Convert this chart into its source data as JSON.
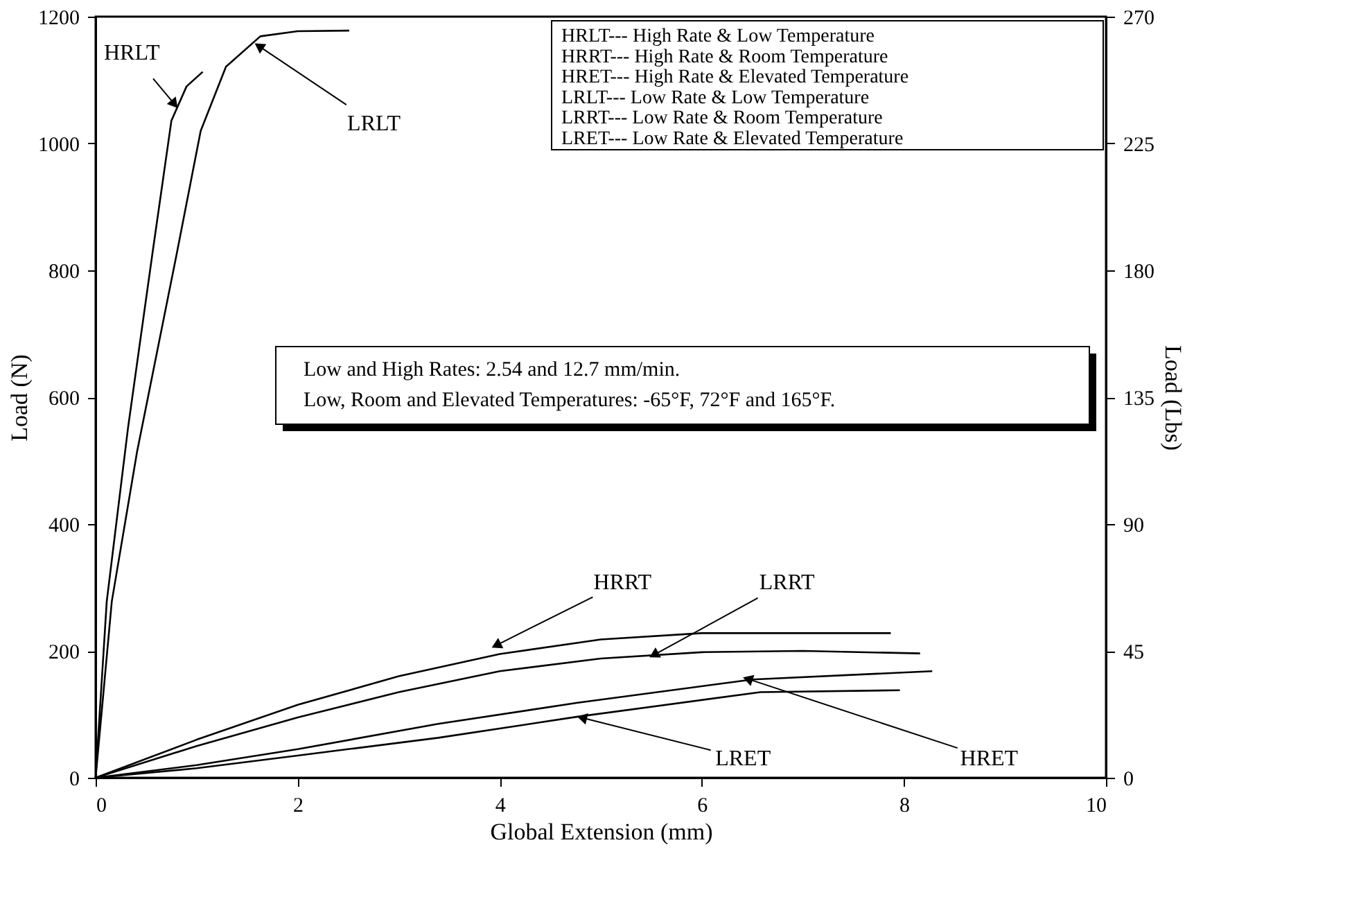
{
  "chart_data": {
    "type": "line",
    "xlabel": "Global Extension (mm)",
    "ylabel": "Load (N)",
    "y2label": "Load (Lbs)",
    "xlim": [
      0,
      10
    ],
    "xticks": [
      0,
      2,
      4,
      6,
      8,
      10
    ],
    "ylim": [
      0,
      1200
    ],
    "yticks": [
      0,
      200,
      400,
      600,
      800,
      1000,
      1200
    ],
    "y2lim": [
      0,
      270
    ],
    "y2ticks": [
      0,
      45,
      90,
      135,
      180,
      225,
      270
    ],
    "grid": false,
    "marker": "none",
    "line_style": "solid",
    "series": [
      {
        "color": "#000000",
        "x": [
          0,
          0.11,
          0.32,
          0.56,
          0.75,
          0.9,
          1.06
        ],
        "values": [
          0,
          278,
          551,
          824,
          1036,
          1090,
          1113
        ]
      },
      {
        "color": "#000000",
        "x": [
          0,
          0.16,
          0.41,
          0.8,
          1.04,
          1.29,
          1.63,
          2.0,
          2.51
        ],
        "values": [
          0,
          278,
          514,
          824,
          1020,
          1121,
          1169,
          1177,
          1178
        ]
      },
      {
        "color": "#000000",
        "x": [
          0,
          1,
          2,
          3,
          4,
          5,
          6,
          7.87
        ],
        "values": [
          0,
          60,
          115,
          160,
          195,
          218,
          228,
          228
        ]
      },
      {
        "color": "#000000",
        "x": [
          0,
          1,
          2,
          3,
          4,
          5,
          6,
          7,
          8.16
        ],
        "values": [
          0,
          50,
          95,
          135,
          168,
          188,
          198,
          200,
          196
        ]
      },
      {
        "color": "#000000",
        "x": [
          0,
          1,
          2,
          3.39,
          4.76,
          6.5,
          8.28
        ],
        "values": [
          0,
          20,
          45,
          85,
          118,
          155,
          168
        ]
      },
      {
        "color": "#000000",
        "x": [
          0,
          1,
          2,
          3.39,
          4.76,
          6.58,
          7.96
        ],
        "values": [
          0,
          15,
          35,
          63,
          96,
          135,
          138
        ]
      }
    ],
    "annotations": [
      {
        "text": "HRLT",
        "x": 0.77,
        "y": 1064
      },
      {
        "text": "LRLT",
        "x": 1.63,
        "y": 1152
      },
      {
        "text": "HRRT",
        "x": 3.98,
        "y": 210
      },
      {
        "text": "LRRT",
        "x": 5.54,
        "y": 195
      },
      {
        "text": "LRET",
        "x": 4.83,
        "y": 94
      },
      {
        "text": "HRET",
        "x": 6.47,
        "y": 155
      },
      "HRLT--- High Rate & Low Temperature",
      "HRRT--- High Rate & Room Temperature",
      "HRET--- High Rate & Elevated Temperature",
      "LRLT--- Low Rate & Low Temperature",
      "LRRT--- Low Rate & Room Temperature",
      "LRET--- Low Rate & Elevated Temperature",
      "Low and High Rates: 2.54 and 12.7 mm/min.",
      "Low, Room and Elevated Temperatures: -65°F, 72°F and 165°F."
    ]
  }
}
